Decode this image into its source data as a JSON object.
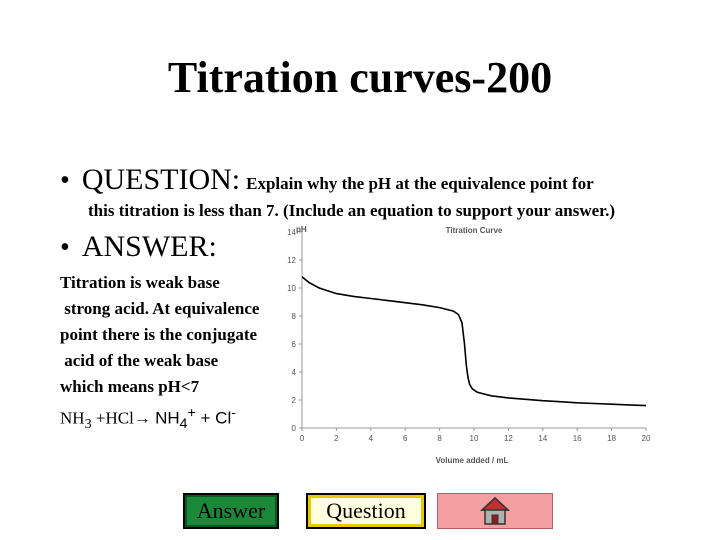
{
  "slide": {
    "title": "Titration curves-200",
    "question_heading": "QUESTION:",
    "question_text_1": "Explain why the pH at the equivalence point for",
    "question_text_2": "this titration is less than 7. (Include an equation to support your answer.)",
    "answer_heading": "ANSWER:",
    "answer_lines": [
      "Titration is weak base",
      " strong acid. At equivalence",
      "point there is the conjugate",
      " acid of the weak base",
      "which means pH<7"
    ],
    "equation": {
      "nh3": "NH",
      "nh3_sub": "3",
      "hcl": " +HCl",
      "arrow": "→ ",
      "nh4": "NH",
      "nh4_sub": "4",
      "nh4_sup": "+",
      "plus": " + Cl",
      "cl_sup": "-"
    }
  },
  "chart_data": {
    "type": "line",
    "title": "Titration Curve",
    "xlabel": "Volume added / mL",
    "ylabel": "pH",
    "xlim": [
      0,
      20
    ],
    "ylim": [
      0,
      14
    ],
    "x_ticks": [
      "0",
      "2",
      "4",
      "6",
      "8",
      "10",
      "12",
      "14",
      "16",
      "18",
      "20"
    ],
    "y_ticks": [
      "0",
      "2",
      "4",
      "6",
      "8",
      "10",
      "12",
      "14"
    ],
    "grid": false,
    "series": [
      {
        "x": [
          0,
          0.4,
          1,
          2,
          3,
          4,
          5,
          6,
          7,
          8,
          8.8,
          9.1,
          9.3,
          9.45,
          9.55,
          9.65,
          9.75,
          9.9,
          10.2,
          11,
          12,
          13,
          14,
          15,
          16,
          17,
          18,
          19,
          20
        ],
        "y": [
          10.8,
          10.4,
          10.0,
          9.6,
          9.4,
          9.25,
          9.1,
          8.95,
          8.8,
          8.6,
          8.35,
          8.1,
          7.5,
          6.0,
          4.5,
          3.6,
          3.1,
          2.8,
          2.55,
          2.3,
          2.15,
          2.05,
          1.95,
          1.88,
          1.8,
          1.75,
          1.7,
          1.65,
          1.6
        ]
      }
    ],
    "color": "#000000"
  },
  "buttons": {
    "answer_label": "Answer",
    "question_label": "Question",
    "home_icon": "home-icon"
  }
}
